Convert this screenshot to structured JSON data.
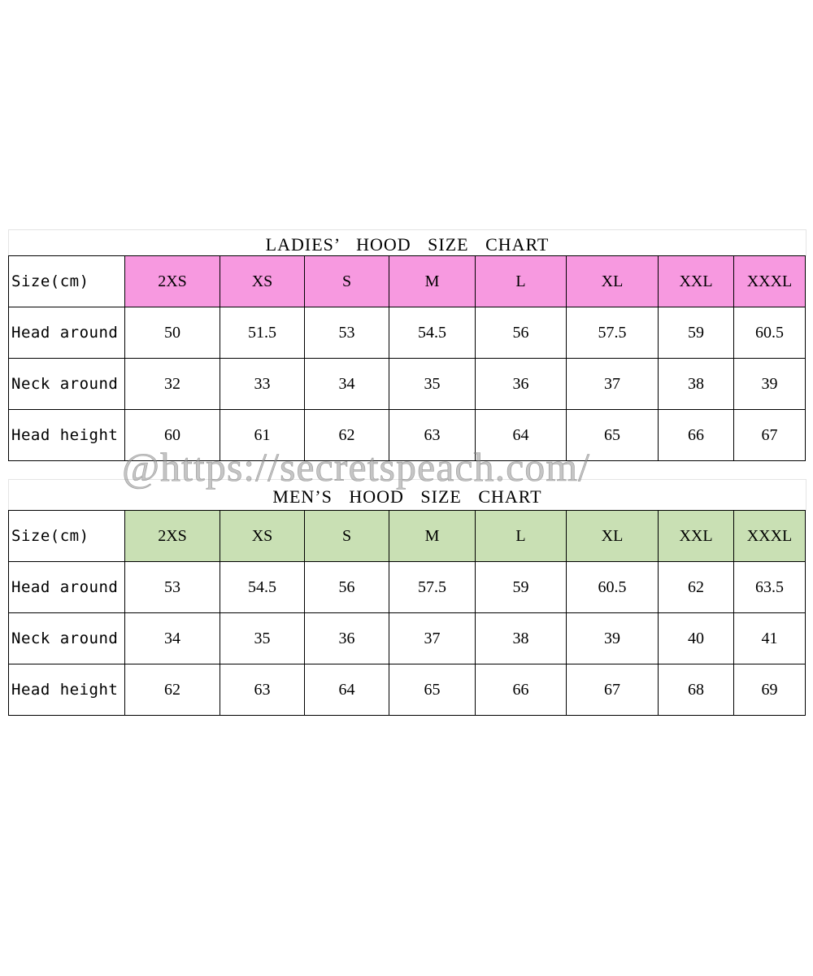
{
  "ladies": {
    "title": "LADIES’ HOOD SIZE CHART",
    "header_color": "#f799e0",
    "columns": [
      "Size(cm)",
      "2XS",
      "XS",
      "S",
      "M",
      "L",
      "XL",
      "XXL",
      "XXXL"
    ],
    "rows": [
      {
        "label": "Head around",
        "values": [
          "50",
          "51.5",
          "53",
          "54.5",
          "56",
          "57.5",
          "59",
          "60.5"
        ]
      },
      {
        "label": "Neck around",
        "values": [
          "32",
          "33",
          "34",
          "35",
          "36",
          "37",
          "38",
          "39"
        ]
      },
      {
        "label": "Head height",
        "values": [
          "60",
          "61",
          "62",
          "63",
          "64",
          "65",
          "66",
          "67"
        ]
      }
    ]
  },
  "men": {
    "title": "MEN’S HOOD SIZE CHART",
    "header_color": "#c9e0b4",
    "columns": [
      "Size(cm)",
      "2XS",
      "XS",
      "S",
      "M",
      "L",
      "XL",
      "XXL",
      "XXXL"
    ],
    "rows": [
      {
        "label": "Head around",
        "values": [
          "53",
          "54.5",
          "56",
          "57.5",
          "59",
          "60.5",
          "62",
          "63.5"
        ]
      },
      {
        "label": "Neck around",
        "values": [
          "34",
          "35",
          "36",
          "37",
          "38",
          "39",
          "40",
          "41"
        ]
      },
      {
        "label": "Head height",
        "values": [
          "62",
          "63",
          "64",
          "65",
          "66",
          "67",
          "68",
          "69"
        ]
      }
    ]
  },
  "watermark": "@https://secretspeach.com/"
}
